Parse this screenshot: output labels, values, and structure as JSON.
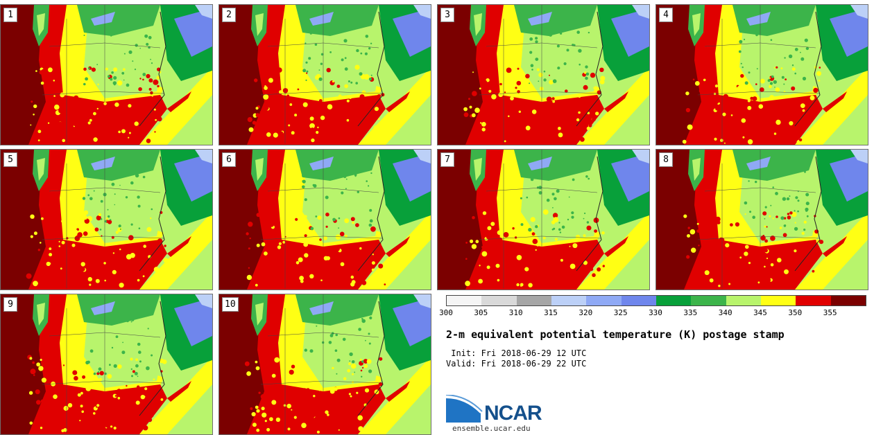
{
  "figure": {
    "title": "2-m equivalent potential temperature (K) postage stamp",
    "init": " Init: Fri 2018-06-29 12 UTC",
    "valid": "Valid: Fri 2018-06-29 22 UTC"
  },
  "members": [
    "1",
    "2",
    "3",
    "4",
    "5",
    "6",
    "7",
    "8",
    "9",
    "10"
  ],
  "colorbar": {
    "ticks": [
      "300",
      "305",
      "310",
      "315",
      "320",
      "325",
      "330",
      "335",
      "340",
      "345",
      "350",
      "355"
    ],
    "colors": [
      "#f5f5f5",
      "#d9d9d9",
      "#a6a6a6",
      "#bcd0f7",
      "#8fa9f5",
      "#6f86ec",
      "#08a03a",
      "#3cb44a",
      "#b8f46c",
      "#ffff14",
      "#e00000",
      "#7b0000"
    ]
  },
  "logo": {
    "text": "NCAR",
    "url": "ensemble.ucar.edu"
  }
}
